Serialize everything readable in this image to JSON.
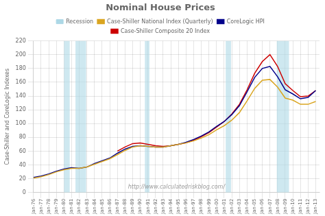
{
  "chart_data": {
    "type": "line",
    "title": "Nominal House Prices",
    "ylabel": "Case-Shiller and CoreLogic Indexes",
    "annotations": [
      "http://www.calculatedriskblog.com/"
    ],
    "x": [
      1976,
      1977,
      1978,
      1979,
      1980,
      1981,
      1982,
      1983,
      1984,
      1985,
      1986,
      1987,
      1988,
      1989,
      1990,
      1991,
      1992,
      1993,
      1994,
      1995,
      1996,
      1997,
      1998,
      1999,
      2000,
      2001,
      2002,
      2003,
      2004,
      2005,
      2006,
      2007,
      2008,
      2009,
      2010,
      2011,
      2012,
      2013
    ],
    "series": [
      {
        "name": "Case-Shiller National Index (Quarterly)",
        "color": "#DAA520",
        "values": [
          21,
          23,
          26,
          30,
          33,
          35,
          35,
          37,
          41,
          45,
          49,
          55,
          61,
          66,
          68,
          67,
          66,
          66,
          68,
          70,
          72,
          75,
          79,
          84,
          91,
          97,
          105,
          116,
          133,
          151,
          163,
          164,
          153,
          137,
          134,
          128,
          128,
          132
        ]
      },
      {
        "name": "CoreLogic HPI",
        "color": "#00008B",
        "values": [
          22,
          24,
          27,
          31,
          34,
          36,
          35,
          37,
          42,
          46,
          50,
          57,
          63,
          67,
          68,
          67,
          66,
          66,
          68,
          70,
          73,
          77,
          82,
          88,
          96,
          103,
          113,
          126,
          146,
          167,
          180,
          183,
          168,
          149,
          143,
          136,
          138,
          148
        ]
      },
      {
        "name": "Case-Shiller Composite 20 Index",
        "color": "#CC0000",
        "values": [
          null,
          null,
          null,
          null,
          null,
          null,
          null,
          null,
          null,
          null,
          null,
          60,
          66,
          71,
          72,
          70,
          68,
          67,
          68,
          70,
          72,
          76,
          81,
          87,
          95,
          103,
          114,
          128,
          149,
          173,
          190,
          200,
          183,
          158,
          148,
          139,
          140,
          148
        ]
      }
    ],
    "bands": {
      "name": "Recession",
      "color": "#add8e6",
      "ranges": [
        [
          1980.0,
          1980.75
        ],
        [
          1981.5,
          1982.9
        ],
        [
          1990.6,
          1991.2
        ],
        [
          2001.2,
          2001.9
        ],
        [
          2007.9,
          2009.5
        ]
      ]
    },
    "xlim": [
      1976,
      2013.5
    ],
    "xticks": [
      {
        "value": 1976,
        "label": "Jan-76"
      },
      {
        "value": 1977,
        "label": "Jan-77"
      },
      {
        "value": 1978,
        "label": "Jan-78"
      },
      {
        "value": 1979,
        "label": "Jan-79"
      },
      {
        "value": 1980,
        "label": "Jan-80"
      },
      {
        "value": 1981,
        "label": "Jan-81"
      },
      {
        "value": 1982,
        "label": "Jan-82"
      },
      {
        "value": 1983,
        "label": "Jan-83"
      },
      {
        "value": 1984,
        "label": "Jan-84"
      },
      {
        "value": 1985,
        "label": "Jan-85"
      },
      {
        "value": 1986,
        "label": "Jan-86"
      },
      {
        "value": 1987,
        "label": "Jan-87"
      },
      {
        "value": 1988,
        "label": "Jan-88"
      },
      {
        "value": 1989,
        "label": "Jan-89"
      },
      {
        "value": 1990,
        "label": "Jan-90"
      },
      {
        "value": 1991,
        "label": "Jan-91"
      },
      {
        "value": 1992,
        "label": "Jan-92"
      },
      {
        "value": 1993,
        "label": "Jan-93"
      },
      {
        "value": 1994,
        "label": "Jan-94"
      },
      {
        "value": 1995,
        "label": "Jan-95"
      },
      {
        "value": 1996,
        "label": "Jan-96"
      },
      {
        "value": 1997,
        "label": "Jan-97"
      },
      {
        "value": 1998,
        "label": "Jan-98"
      },
      {
        "value": 1999,
        "label": "Jan-99"
      },
      {
        "value": 2000,
        "label": "Jan-00"
      },
      {
        "value": 2001,
        "label": "Jan-01"
      },
      {
        "value": 2002,
        "label": "Jan-02"
      },
      {
        "value": 2003,
        "label": "Jan-03"
      },
      {
        "value": 2004,
        "label": "Jan-04"
      },
      {
        "value": 2005,
        "label": "Jan-05"
      },
      {
        "value": 2006,
        "label": "Jan-06"
      },
      {
        "value": 2007,
        "label": "Jan-07"
      },
      {
        "value": 2008,
        "label": "Jan-08"
      },
      {
        "value": 2009,
        "label": "Jan-09"
      },
      {
        "value": 2010,
        "label": "Jan-10"
      },
      {
        "value": 2011,
        "label": "Jan-11"
      },
      {
        "value": 2012,
        "label": "Jan-12"
      },
      {
        "value": 2013,
        "label": "Jan-13"
      }
    ],
    "ylim": [
      0,
      220
    ],
    "yticks": [
      0,
      20,
      40,
      60,
      80,
      100,
      120,
      140,
      160,
      180,
      200,
      220
    ],
    "grid": true,
    "legend": "top"
  }
}
